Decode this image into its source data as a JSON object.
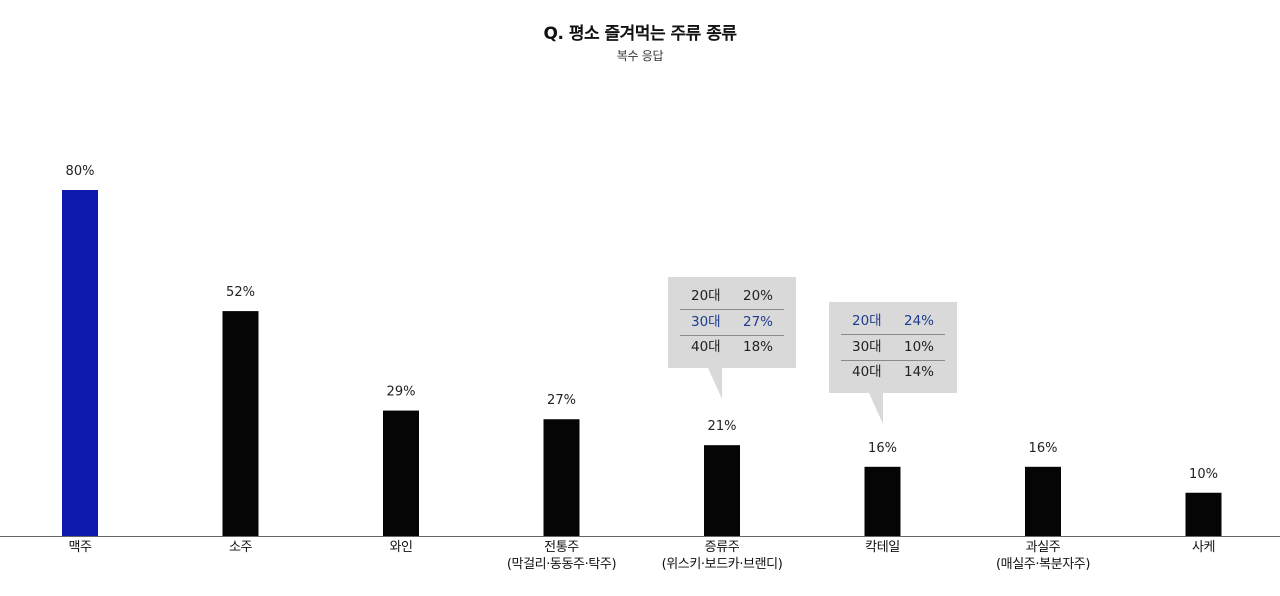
{
  "title": "Q. 평소 즐겨먹는 주류 종류",
  "subtitle": "복수 응답",
  "colors": {
    "highlight_bar": "#0d1aad",
    "bar": "#050505",
    "axis": "#666666",
    "tooltip_bg": "#d9d9d9",
    "tooltip_highlight_text": "#1f3d8f"
  },
  "chart_data": {
    "type": "bar",
    "title": "Q. 평소 즐겨먹는 주류 종류",
    "subtitle": "복수 응답",
    "categories": [
      {
        "line1": "맥주",
        "line2": ""
      },
      {
        "line1": "소주",
        "line2": ""
      },
      {
        "line1": "와인",
        "line2": ""
      },
      {
        "line1": "전통주",
        "line2": "(막걸리·동동주·탁주)"
      },
      {
        "line1": "증류주",
        "line2": "(위스키·보드카·브랜디)"
      },
      {
        "line1": "칵테일",
        "line2": ""
      },
      {
        "line1": "과실주",
        "line2": "(매실주·복분자주)"
      },
      {
        "line1": "사케",
        "line2": ""
      }
    ],
    "values": [
      80,
      52,
      29,
      27,
      21,
      16,
      16,
      10
    ],
    "value_labels": [
      "80%",
      "52%",
      "29%",
      "27%",
      "21%",
      "16%",
      "16%",
      "10%"
    ],
    "highlight_index": 0,
    "ylim": [
      0,
      80
    ],
    "grid": false,
    "legend": "none",
    "annotations": [
      {
        "category": "증류주",
        "rows": [
          {
            "age": "20대",
            "value": "20%",
            "highlight": false
          },
          {
            "age": "30대",
            "value": "27%",
            "highlight": true
          },
          {
            "age": "40대",
            "value": "18%",
            "highlight": false
          }
        ]
      },
      {
        "category": "칵테일",
        "rows": [
          {
            "age": "20대",
            "value": "24%",
            "highlight": true
          },
          {
            "age": "30대",
            "value": "10%",
            "highlight": false
          },
          {
            "age": "40대",
            "value": "14%",
            "highlight": false
          }
        ]
      }
    ]
  }
}
